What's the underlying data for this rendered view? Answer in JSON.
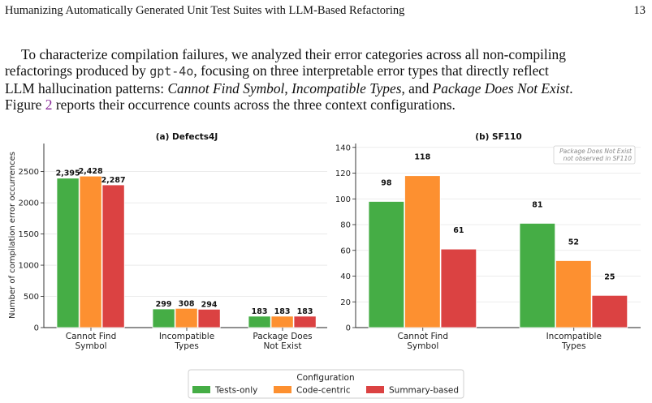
{
  "header": {
    "title": "Humanizing Automatically Generated Unit Test Suites with LLM-Based Refactoring",
    "page_number": "13"
  },
  "paragraph": {
    "line1": "To characterize compilation failures, we analyzed their error categories across all non-compiling",
    "line2_a": "refactorings produced by ",
    "model": "gpt-4o",
    "line2_b": ", focusing on three interpretable error types that directly reflect",
    "line3_a": "LLM hallucination patterns: ",
    "cat1": "Cannot Find Symbol",
    "sep1": ", ",
    "cat2": "Incompatible Types",
    "sep2": ", and ",
    "cat3": "Package Does Not Exist",
    "end3": ".",
    "line4_a": "Figure ",
    "fig_ref": "2",
    "line4_b": " reports their occurrence counts across the three context configurations."
  },
  "colors": {
    "tests_only": "#45ad45",
    "code_centric": "#fd9030",
    "summary_based": "#db4242"
  },
  "chart_data": [
    {
      "type": "bar",
      "title": "(a) Defects4J",
      "ylabel": "Number of compilation error occurrences",
      "ylim": [
        0,
        2950
      ],
      "yticks": [
        0,
        500,
        1000,
        1500,
        2000,
        2500
      ],
      "grid": true,
      "categories": [
        "Cannot Find\nSymbol",
        "Incompatible\nTypes",
        "Package Does\nNot Exist"
      ],
      "series": [
        {
          "name": "Tests-only",
          "values": [
            2395,
            299,
            183
          ],
          "labels": [
            "2,395",
            "299",
            "183"
          ]
        },
        {
          "name": "Code-centric",
          "values": [
            2428,
            308,
            183
          ],
          "labels": [
            "2,428",
            "308",
            "183"
          ]
        },
        {
          "name": "Summary-based",
          "values": [
            2287,
            294,
            183
          ],
          "labels": [
            "2,287",
            "294",
            "183"
          ]
        }
      ]
    },
    {
      "type": "bar",
      "title": "(b) SF110",
      "ylim": [
        0,
        143
      ],
      "yticks": [
        0,
        20,
        40,
        60,
        80,
        100,
        120,
        140
      ],
      "grid": true,
      "annotation": [
        "Package Does Not Exist",
        "not observed in SF110"
      ],
      "categories": [
        "Cannot Find\nSymbol",
        "Incompatible\nTypes"
      ],
      "series": [
        {
          "name": "Tests-only",
          "values": [
            98,
            81
          ],
          "labels": [
            "98",
            "81"
          ]
        },
        {
          "name": "Code-centric",
          "values": [
            118,
            52
          ],
          "labels": [
            "118",
            "52"
          ]
        },
        {
          "name": "Summary-based",
          "values": [
            61,
            25
          ],
          "labels": [
            "61",
            "25"
          ]
        }
      ]
    }
  ],
  "legend": {
    "title": "Configuration",
    "placement": "bottom-center",
    "items": [
      {
        "label": "Tests-only",
        "color": "#45ad45"
      },
      {
        "label": "Code-centric",
        "color": "#fd9030"
      },
      {
        "label": "Summary-based",
        "color": "#db4242"
      }
    ]
  }
}
